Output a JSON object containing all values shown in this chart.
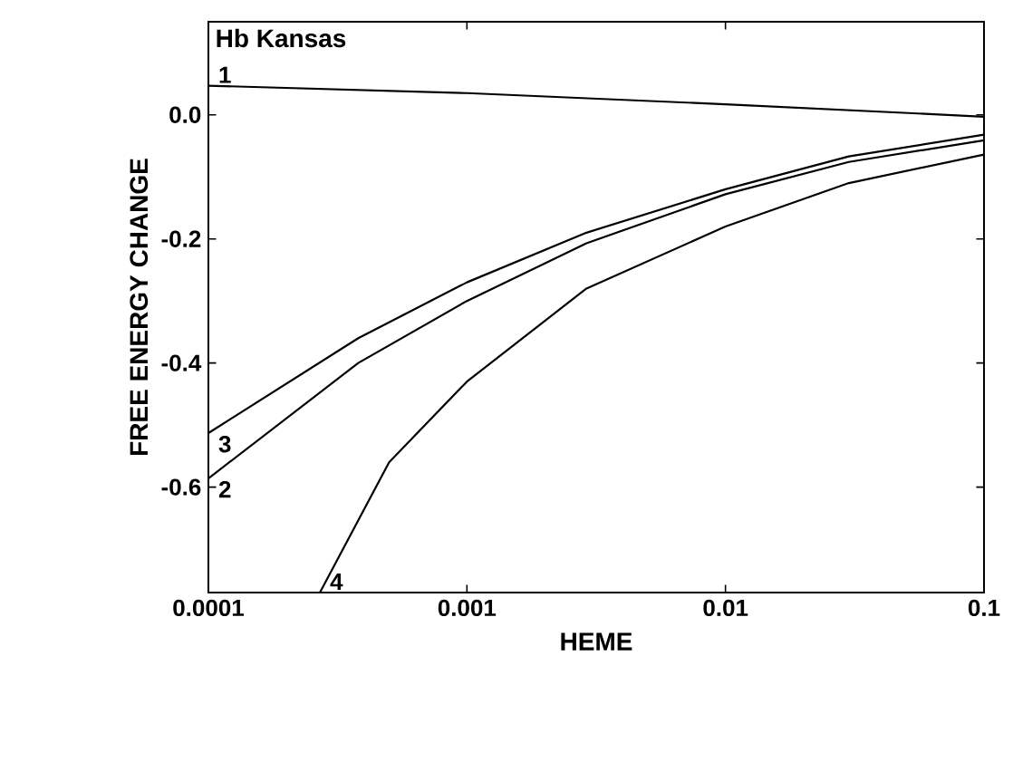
{
  "chart_data": {
    "type": "line",
    "xlabel": "HEME",
    "ylabel": "FREE ENERGY CHANGE",
    "log": "x",
    "marker": "none",
    "line_style": "solid",
    "xlim": [
      0.0001,
      0.1
    ],
    "ylim": [
      -0.77,
      0.15
    ],
    "xticks": [
      {
        "value": 0.0001,
        "label": "0.0001"
      },
      {
        "value": 0.001,
        "label": "0.001"
      },
      {
        "value": 0.01,
        "label": "0.01"
      },
      {
        "value": 0.1,
        "label": "0.1"
      }
    ],
    "yticks": [
      {
        "value": 0,
        "label": "0.0"
      },
      {
        "value": -0.2,
        "label": "-0.2"
      },
      {
        "value": -0.4,
        "label": "-0.4"
      },
      {
        "value": -0.6,
        "label": "-0.6"
      }
    ],
    "series": [
      {
        "color": "#000000",
        "x": [
          0.0001,
          0.001,
          0.01,
          0.1
        ],
        "values": [
          0.047,
          0.035,
          0.017,
          -0.003
        ]
      },
      {
        "color": "#000000",
        "x": [
          0.0001,
          0.00038,
          0.001,
          0.0029,
          0.01,
          0.03,
          0.1
        ],
        "values": [
          -0.586,
          -0.4,
          -0.3,
          -0.207,
          -0.128,
          -0.076,
          -0.041
        ]
      },
      {
        "color": "#000000",
        "x": [
          0.0001,
          0.00038,
          0.001,
          0.0029,
          0.01,
          0.03,
          0.1
        ],
        "values": [
          -0.513,
          -0.36,
          -0.27,
          -0.19,
          -0.12,
          -0.067,
          -0.032
        ]
      },
      {
        "color": "#000000",
        "x": [
          0.00027,
          0.0005,
          0.001,
          0.0029,
          0.01,
          0.03,
          0.1
        ],
        "values": [
          -0.77,
          -0.56,
          -0.43,
          -0.28,
          -0.18,
          -0.11,
          -0.064
        ]
      }
    ],
    "annotations": [
      "Hb Kansas",
      "1",
      "2",
      "3",
      "4"
    ]
  }
}
